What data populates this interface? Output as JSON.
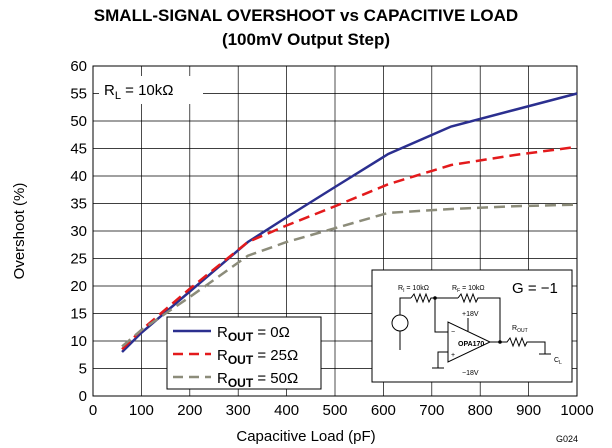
{
  "chart_data": {
    "type": "line",
    "title": "SMALL-SIGNAL OVERSHOOT vs CAPACITIVE LOAD",
    "subtitle": "(100mV Output Step)",
    "xlabel": "Capacitive Load (pF)",
    "ylabel": "Overshoot (%)",
    "xlim": [
      0,
      1000
    ],
    "ylim": [
      0,
      60
    ],
    "xticks": [
      0,
      100,
      200,
      300,
      400,
      500,
      600,
      700,
      800,
      900,
      1000
    ],
    "yticks": [
      0,
      5,
      10,
      15,
      20,
      25,
      30,
      35,
      40,
      45,
      50,
      55,
      60
    ],
    "grid": true,
    "legend_position": "bottom-left",
    "annotation": {
      "rl_label": "R",
      "rl_sub": "L",
      "rl_value": " = 10kΩ"
    },
    "figure_id": "G024",
    "series": [
      {
        "legend_main": "R",
        "legend_sub": "OUT",
        "legend_value": " = 0Ω",
        "color": "#2b2f8f",
        "dash": "solid",
        "x": [
          60,
          100,
          200,
          320,
          400,
          500,
          610,
          740,
          870,
          1000
        ],
        "y": [
          8,
          11.5,
          19,
          28,
          32.5,
          38,
          44,
          49,
          52,
          55
        ]
      },
      {
        "legend_main": "R",
        "legend_sub": "OUT",
        "legend_value": " = 25Ω",
        "color": "#e31a1c",
        "dash": "dashed",
        "x": [
          60,
          100,
          200,
          320,
          400,
          500,
          610,
          740,
          870,
          1000
        ],
        "y": [
          8.5,
          12,
          19.5,
          28,
          31,
          34.5,
          38.5,
          42,
          43.8,
          45.3
        ]
      },
      {
        "legend_main": "R",
        "legend_sub": "OUT",
        "legend_value": " = 50Ω",
        "color": "#8c8c7a",
        "dash": "dashed",
        "x": [
          60,
          100,
          200,
          320,
          400,
          500,
          610,
          740,
          870,
          1000
        ],
        "y": [
          9,
          12,
          18,
          25.5,
          28,
          30.5,
          33.3,
          34,
          34.5,
          34.8
        ]
      }
    ]
  },
  "inset": {
    "gain": "G = −1",
    "ri_label": "R",
    "ri_sub": "I",
    "ri_value": " = 10kΩ",
    "rf_label": "R",
    "rf_sub": "F",
    "rf_value": " = 10kΩ",
    "vpos": "+18V",
    "vneg": "−18V",
    "opamp": "OPA170",
    "rout_label": "R",
    "rout_sub": "OUT",
    "cl_label": "C",
    "cl_sub": "L",
    "minus": "−",
    "plus": "+"
  }
}
